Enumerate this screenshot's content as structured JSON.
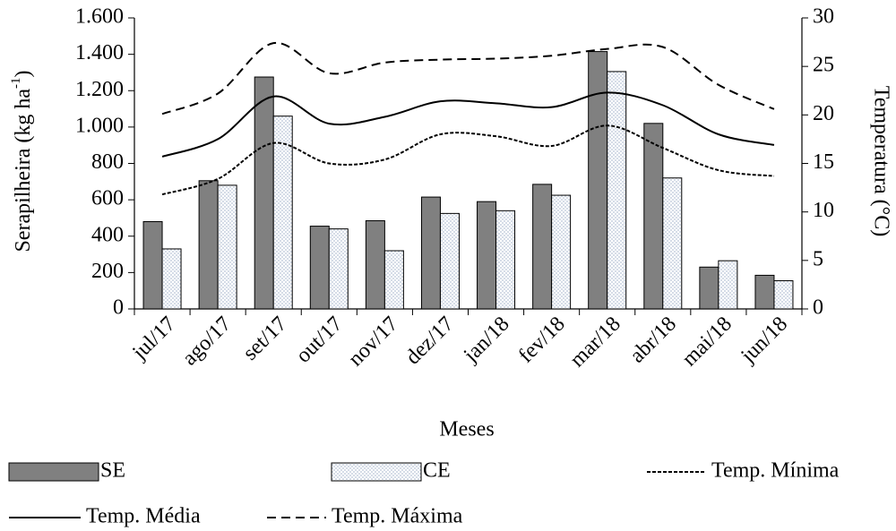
{
  "chart_data": {
    "type": "bar",
    "y_label": {
      "text": "Serapilheira (kg ha",
      "superscript": "-1",
      "suffix": ")"
    },
    "y2_label": "Temperatura (°C)",
    "x_label": "Meses",
    "categories": [
      "jul/17",
      "ago/17",
      "set/17",
      "out/17",
      "nov/17",
      "dez/17",
      "jan/18",
      "fev/18",
      "mar/18",
      "abr/18",
      "mai/18",
      "jun/18"
    ],
    "series": [
      {
        "name": "SE",
        "type": "bar",
        "color": "#808080",
        "values": [
          480,
          705,
          1275,
          455,
          485,
          615,
          590,
          685,
          1415,
          1020,
          230,
          185
        ]
      },
      {
        "name": "CE",
        "type": "bar",
        "color": "#b8c4d6",
        "pattern": "dots",
        "values": [
          330,
          680,
          1060,
          440,
          320,
          525,
          540,
          625,
          1305,
          720,
          265,
          155
        ]
      },
      {
        "name": "Temp. Mínima",
        "type": "line",
        "axis": "y2",
        "color": "#000000",
        "dash": "dotted",
        "values": [
          11.8,
          13.4,
          17.1,
          15.0,
          15.4,
          18.0,
          17.8,
          16.8,
          18.9,
          16.6,
          14.3,
          13.7
        ]
      },
      {
        "name": "Temp. Média",
        "type": "line",
        "axis": "y2",
        "color": "#000000",
        "dash": "solid",
        "values": [
          15.7,
          17.5,
          21.9,
          19.1,
          19.8,
          21.4,
          21.2,
          20.8,
          22.3,
          21.0,
          18.0,
          16.9
        ]
      },
      {
        "name": "Temp. Máxima",
        "type": "line",
        "axis": "y2",
        "color": "#000000",
        "dash": "dashed",
        "values": [
          20.1,
          22.2,
          27.4,
          24.3,
          25.4,
          25.7,
          25.8,
          26.1,
          26.8,
          27.0,
          23.1,
          20.6
        ]
      }
    ],
    "ylim": [
      0,
      1600
    ],
    "yticks": [
      0,
      200,
      400,
      600,
      800,
      {
        "value": 1000,
        "label": "1.000"
      },
      {
        "value": 1200,
        "label": "1.200"
      },
      {
        "value": 1400,
        "label": "1.400"
      },
      {
        "value": 1600,
        "label": "1.600"
      }
    ],
    "y2lim": [
      0,
      30
    ],
    "y2ticks": [
      0,
      5,
      10,
      15,
      20,
      25,
      30
    ],
    "grid": false,
    "legend": "bottom"
  }
}
